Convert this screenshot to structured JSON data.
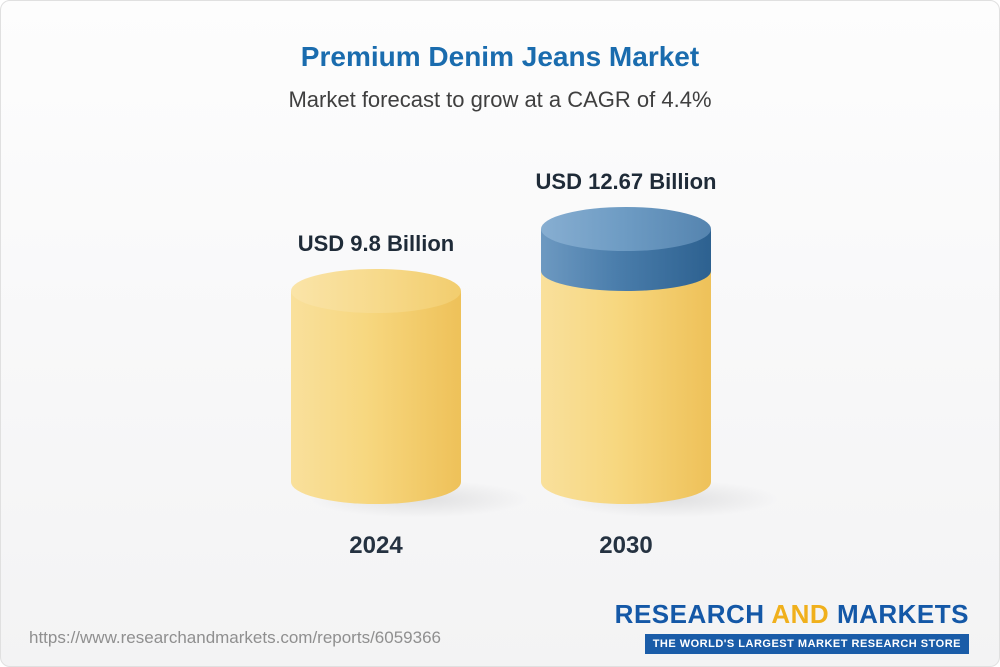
{
  "header": {
    "title": "Premium Denim Jeans Market",
    "subtitle": "Market forecast to grow at a CAGR of 4.4%"
  },
  "chart_data": {
    "type": "bar",
    "categories": [
      "2024",
      "2030"
    ],
    "values": [
      9.8,
      12.67
    ],
    "value_labels": [
      "USD 9.8 Billion",
      "USD 12.67 Billion"
    ],
    "title": "Premium Denim Jeans Market",
    "subtitle": "Market forecast to grow at a CAGR of 4.4%",
    "unit": "USD Billion",
    "cagr": "4.4%",
    "legend": "none",
    "notes": "2030 bar shows growth segment (12.67 - 9.8 = 2.87) as blue top section on yellow cylinder"
  },
  "colors": {
    "title_blue": "#1a6cae",
    "bar_yellow": "#f6d57f",
    "bar_blue": "#4a7dab",
    "brand_blue": "#1458a7",
    "brand_gold": "#f0b01c",
    "tagline_bg": "#1a5ca8"
  },
  "footer": {
    "url": "https://www.researchandmarkets.com/reports/6059366",
    "brand": {
      "research": "RESEARCH",
      "and": "AND",
      "markets": "MARKETS",
      "tagline": "THE WORLD'S LARGEST MARKET RESEARCH STORE"
    }
  }
}
